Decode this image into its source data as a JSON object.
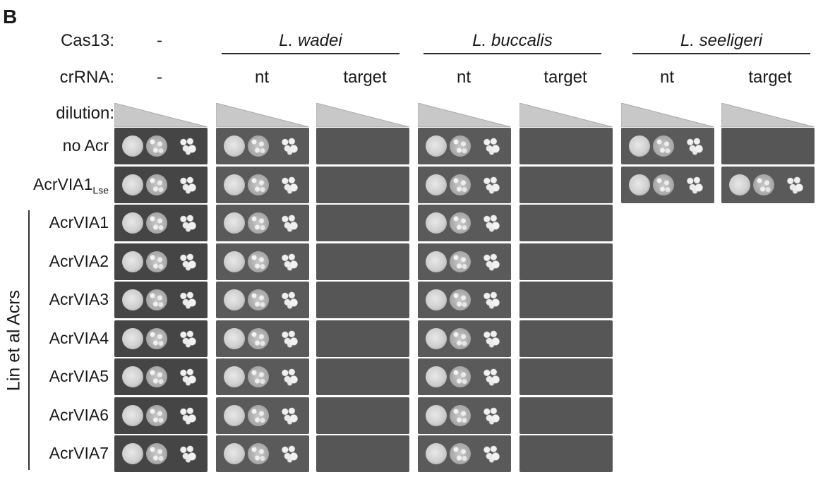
{
  "panel_letter": "B",
  "header": {
    "cas13_label": "Cas13:",
    "crrna_label": "crRNA:",
    "dilution_label": "dilution:",
    "control_cas13": "-",
    "control_crrna": "-",
    "species": [
      "L. wadei",
      "L. buccalis",
      "L. seeligeri"
    ],
    "crrna_cols": [
      "nt",
      "target",
      "nt",
      "target",
      "nt",
      "target"
    ]
  },
  "rows": [
    {
      "main": "no Acr",
      "sub": ""
    },
    {
      "main": "AcrVIA1",
      "sub": "Lse"
    },
    {
      "main": "AcrVIA1",
      "sub": ""
    },
    {
      "main": "AcrVIA2",
      "sub": ""
    },
    {
      "main": "AcrVIA3",
      "sub": ""
    },
    {
      "main": "AcrVIA4",
      "sub": ""
    },
    {
      "main": "AcrVIA5",
      "sub": ""
    },
    {
      "main": "AcrVIA6",
      "sub": ""
    },
    {
      "main": "AcrVIA7",
      "sub": ""
    }
  ],
  "group_label": "Lin et al Acrs",
  "growth": {
    "control": [
      "full",
      "full",
      "full",
      "full",
      "full",
      "full",
      "full",
      "full",
      "full"
    ],
    "wadei_nt": [
      "full",
      "full",
      "full",
      "full",
      "full",
      "full",
      "full",
      "full",
      "full"
    ],
    "wadei_target": [
      "none",
      "none",
      "none",
      "none",
      "none",
      "none",
      "none",
      "none",
      "none"
    ],
    "bucc_nt": [
      "full",
      "full",
      "full",
      "full",
      "full",
      "full",
      "full",
      "full",
      "full"
    ],
    "bucc_target": [
      "none",
      "none",
      "none",
      "none",
      "none",
      "none",
      "none",
      "none",
      "none"
    ],
    "seel_nt": [
      "full",
      "full",
      "",
      "",
      "",
      "",
      "",
      "",
      ""
    ],
    "seel_target": [
      "none",
      "full",
      "",
      "",
      "",
      "",
      "",
      "",
      ""
    ]
  }
}
